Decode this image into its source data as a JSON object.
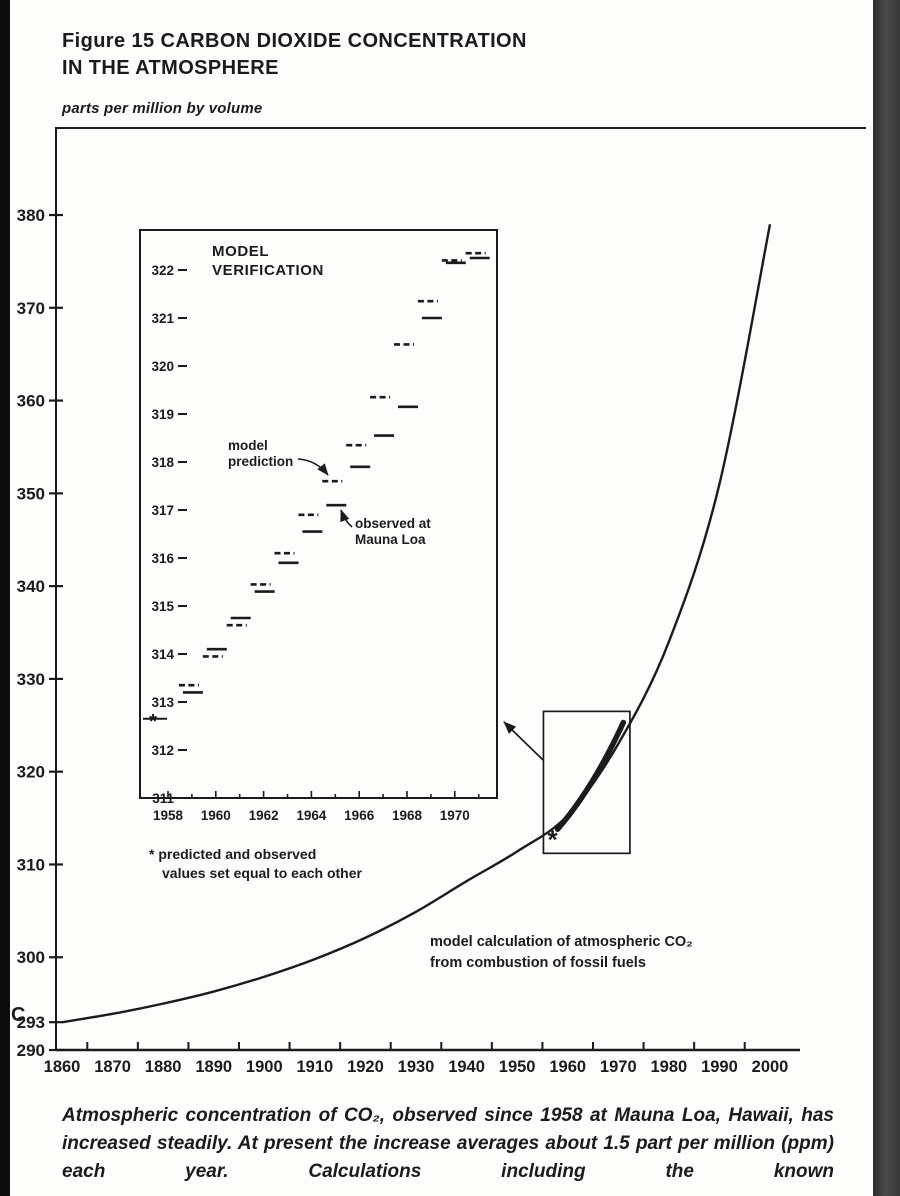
{
  "figure": {
    "title_line1": "Figure 15 CARBON DIOXIDE CONCENTRATION",
    "title_line2": "IN THE ATMOSPHERE",
    "unit_label": "parts per million by volume",
    "caption": "Atmospheric concentration of CO₂, observed since 1958 at Mauna Loa, Hawaii, has increased steadily. At present the increase averages about 1.5 part per million (ppm) each year. Calculations including the known",
    "stray_mark": "C"
  },
  "main_chart_labels": {
    "annotation_line1": "model calculation of atmospheric CO₂",
    "annotation_line2": "from combustion of fossil fuels",
    "marker_symbol": "*"
  },
  "inset_labels": {
    "title_line1": "MODEL",
    "title_line2": "VERIFICATION",
    "model_pointer_line1": "model",
    "model_pointer_line2": "prediction",
    "observed_pointer_line1": "observed at",
    "observed_pointer_line2": "Mauna Loa",
    "footnote_line1": "* predicted and observed",
    "footnote_line2": "values set equal to each other",
    "origin_marker_symbol": "*"
  },
  "chart_data": [
    {
      "id": "main",
      "type": "line",
      "title": "Figure 15 CARBON DIOXIDE CONCENTRATION IN THE ATMOSPHERE",
      "ylabel": "parts per million by volume",
      "xlim": [
        1860,
        2000
      ],
      "ylim": [
        290,
        383
      ],
      "x_ticks": [
        1860,
        1870,
        1880,
        1890,
        1900,
        1910,
        1920,
        1930,
        1940,
        1950,
        1960,
        1970,
        1980,
        1990,
        2000
      ],
      "y_ticks": [
        290,
        293,
        300,
        310,
        320,
        330,
        340,
        350,
        360,
        370,
        380
      ],
      "series": [
        {
          "name": "model calculation of atmospheric CO₂ from combustion of fossil fuels",
          "style": "thin-curve",
          "x": [
            1860,
            1870,
            1880,
            1890,
            1900,
            1910,
            1920,
            1930,
            1940,
            1950,
            1960,
            1970,
            1980,
            1990,
            2000
          ],
          "y": [
            293,
            293.9,
            295,
            296.3,
            297.9,
            299.8,
            302.1,
            304.9,
            308.2,
            311.4,
            315.3,
            323,
            334,
            351,
            379
          ]
        },
        {
          "name": "observed at Mauna Loa",
          "style": "thick-segment",
          "x": [
            1958,
            1971
          ],
          "y": [
            313.8,
            325.3
          ]
        }
      ],
      "star_marker": {
        "x": 1957,
        "y": 312.9,
        "symbol": "*"
      },
      "zoom_box": {
        "x0": 1955.2,
        "x1": 1972.3,
        "y0": 311.2,
        "y1": 326.5
      }
    },
    {
      "id": "inset",
      "type": "line",
      "title": "MODEL VERIFICATION",
      "xlim": [
        1957.2,
        1971.8
      ],
      "ylim": [
        311,
        322.8
      ],
      "x_ticks": [
        1958,
        1960,
        1962,
        1964,
        1966,
        1968,
        1970
      ],
      "y_ticks": [
        311,
        312,
        313,
        314,
        315,
        316,
        317,
        318,
        319,
        320,
        321,
        322
      ],
      "x": [
        1959,
        1960,
        1961,
        1962,
        1963,
        1964,
        1965,
        1966,
        1967,
        1968,
        1969,
        1970,
        1971
      ],
      "series": [
        {
          "name": "model prediction",
          "style": "dashed-bars",
          "values": [
            313.35,
            313.95,
            314.6,
            315.45,
            316.1,
            316.9,
            317.6,
            318.35,
            319.35,
            320.45,
            321.35,
            322.2,
            322.35
          ]
        },
        {
          "name": "observed at Mauna Loa",
          "style": "solid-bars",
          "values": [
            313.2,
            314.1,
            314.75,
            315.3,
            315.9,
            316.55,
            317.1,
            317.9,
            318.55,
            319.15,
            321.0,
            322.15,
            322.25
          ]
        }
      ],
      "star_marker": {
        "x": 1958,
        "y": 312.65,
        "symbol": "*",
        "note": "predicted and observed values set equal to each other"
      }
    }
  ]
}
